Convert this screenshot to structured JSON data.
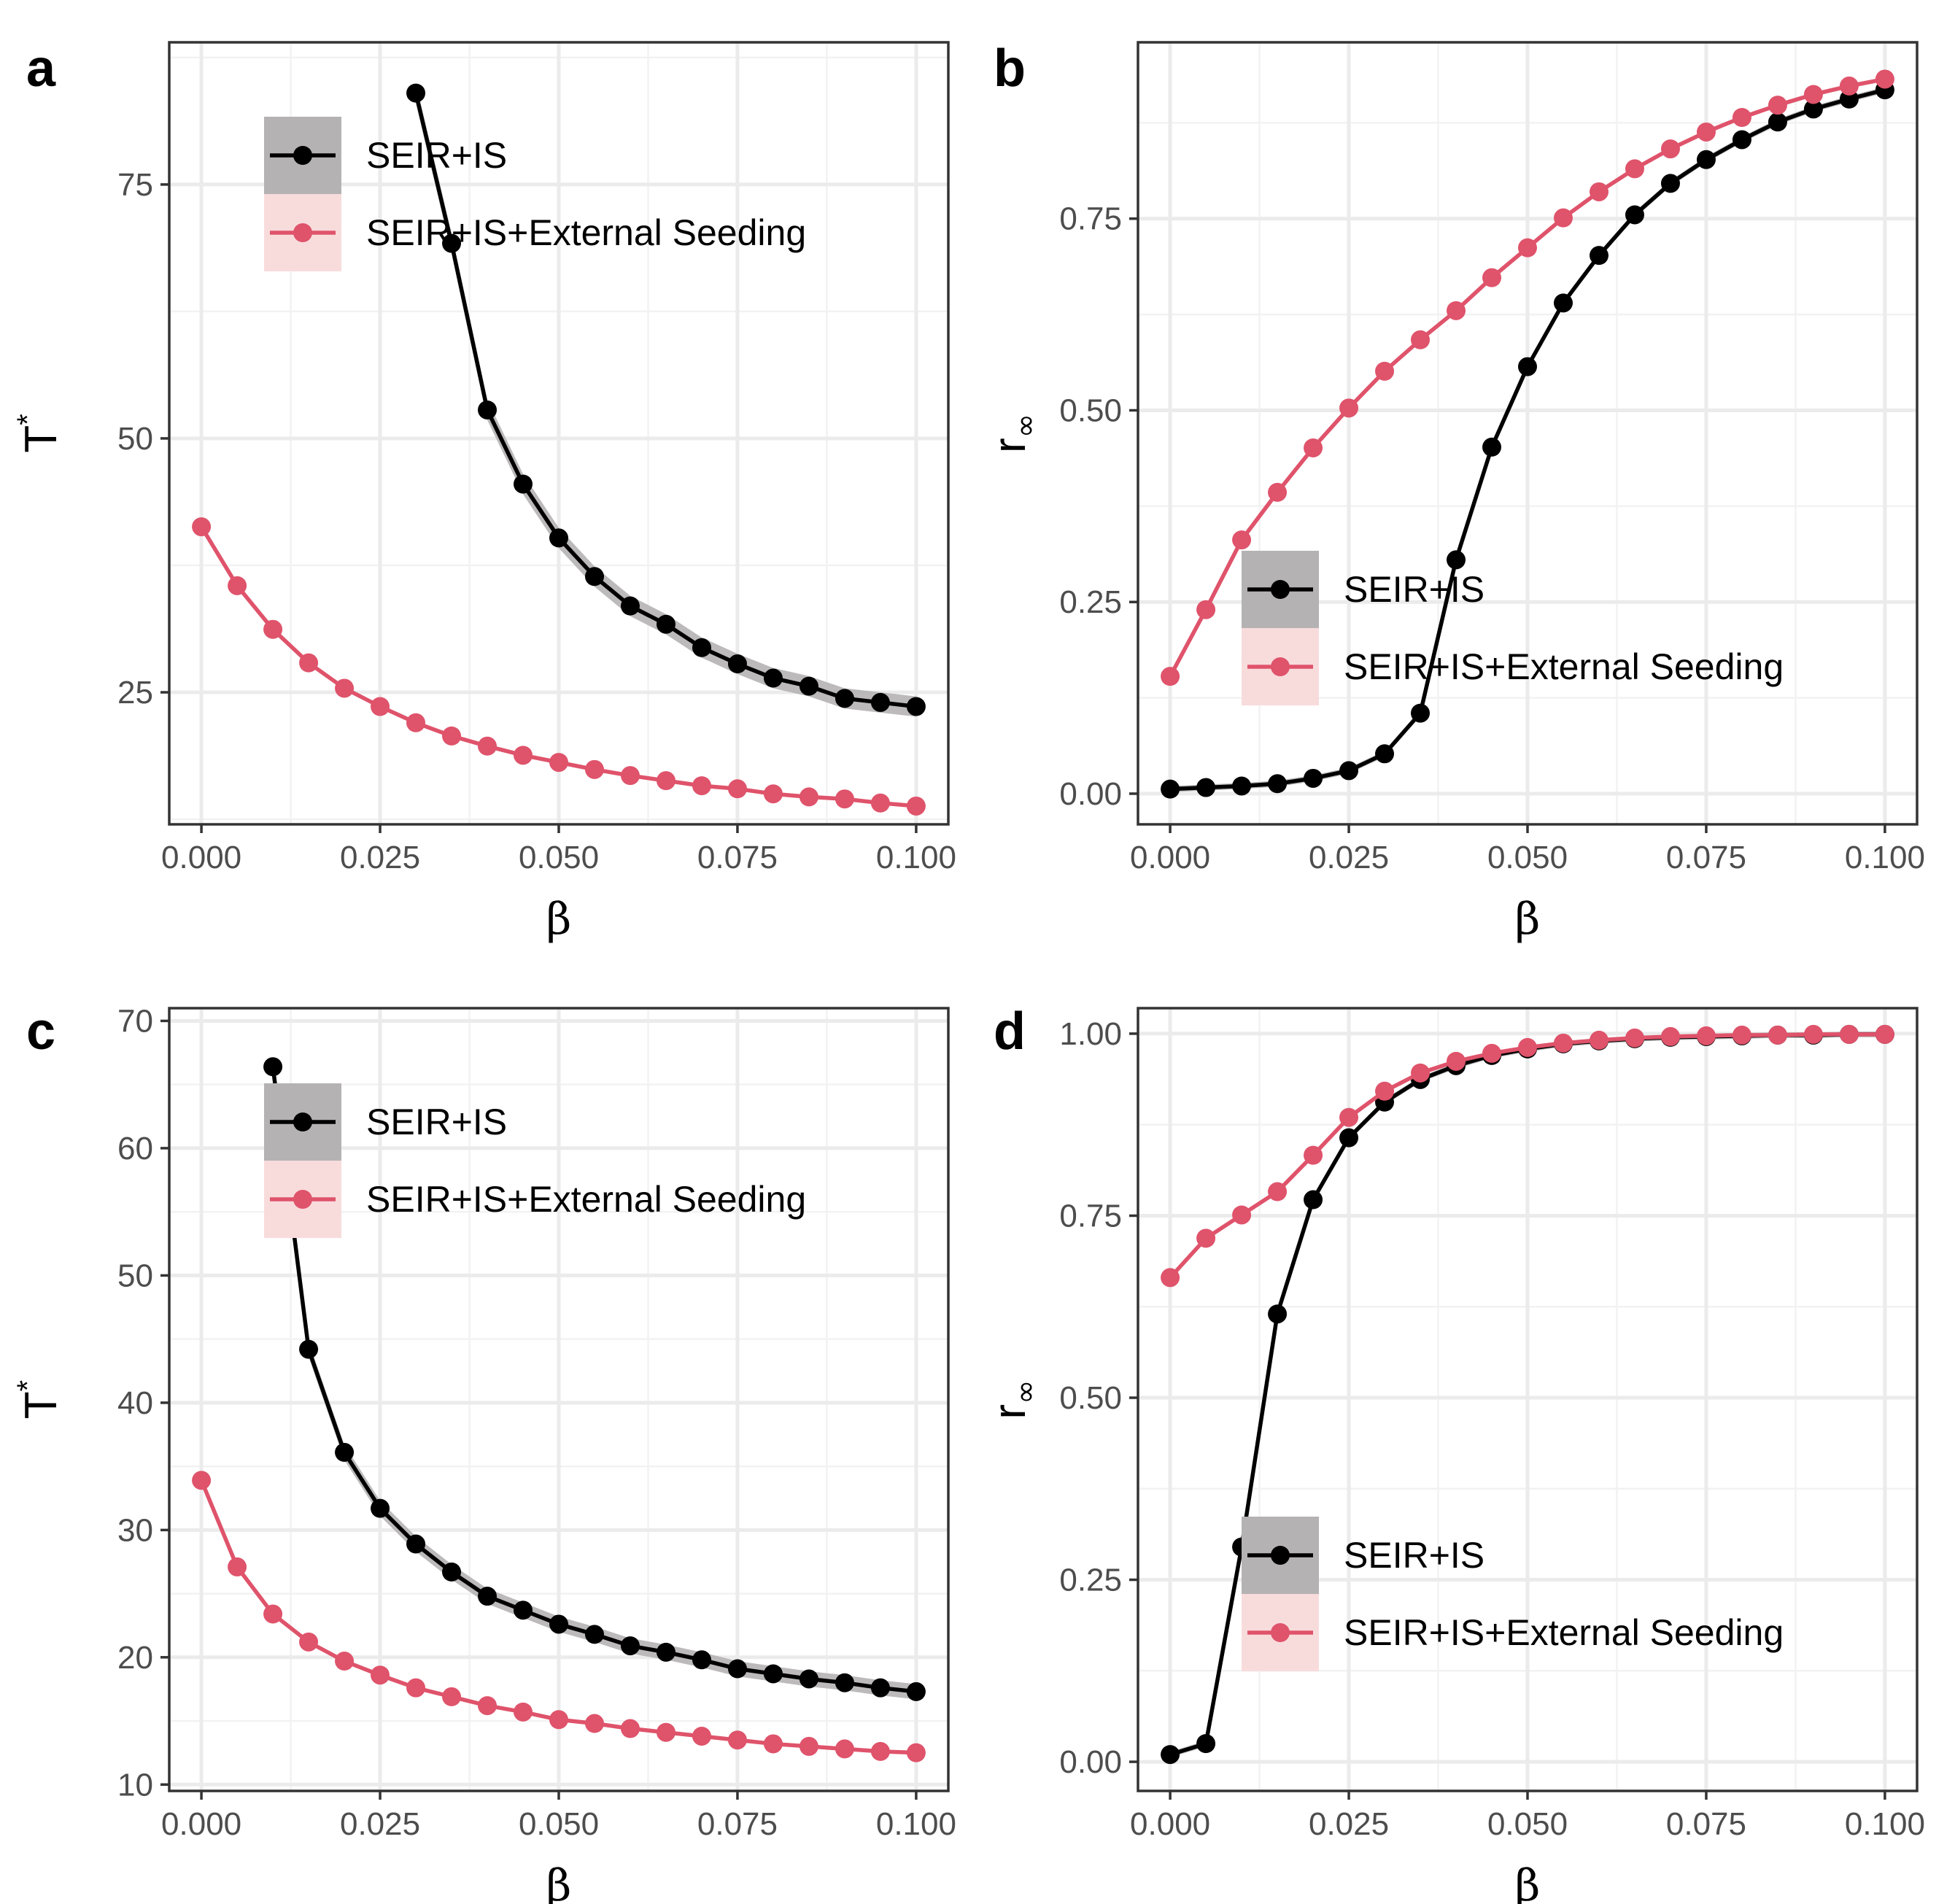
{
  "figure": {
    "legend_labels": [
      "SEIR+IS",
      "SEIR+IS+External Seeding"
    ],
    "series_colors": {
      "SEIR+IS": "#000000",
      "SEIR+IS+External Seeding": "#DF536B"
    },
    "band_colors": {
      "SEIR+IS": "#b5b2b3",
      "SEIR+IS+External Seeding": "#f8dcdc"
    }
  },
  "chart_data": [
    {
      "panel": "a",
      "type": "line",
      "xlabel": "β",
      "ylabel": "T",
      "ylabel_superscript": "*",
      "xlim": [
        -0.0045,
        0.1045
      ],
      "ylim": [
        12,
        89
      ],
      "xticks": [
        0,
        0.025,
        0.05,
        0.075,
        0.1
      ],
      "xtick_labels": [
        "0.000",
        "0.025",
        "0.050",
        "0.075",
        "0.100"
      ],
      "yticks": [
        25,
        50,
        75
      ],
      "ytick_labels": [
        "25",
        "50",
        "75"
      ],
      "legend_position": "top-left",
      "series": [
        {
          "name": "SEIR+IS",
          "x": [
            0.03,
            0.035,
            0.04,
            0.045,
            0.05,
            0.055,
            0.06,
            0.065,
            0.07,
            0.075,
            0.08,
            0.085,
            0.09,
            0.095,
            0.1
          ],
          "values": [
            84.0,
            69.2,
            52.8,
            45.5,
            40.2,
            36.4,
            33.5,
            31.7,
            29.4,
            27.8,
            26.4,
            25.6,
            24.4,
            24.0,
            23.6
          ],
          "band": 1.0
        },
        {
          "name": "SEIR+IS+External Seeding",
          "x": [
            0.0,
            0.005,
            0.01,
            0.015,
            0.02,
            0.025,
            0.03,
            0.035,
            0.04,
            0.045,
            0.05,
            0.055,
            0.06,
            0.065,
            0.07,
            0.075,
            0.08,
            0.085,
            0.09,
            0.095,
            0.1
          ],
          "values": [
            41.3,
            35.5,
            31.2,
            27.9,
            25.4,
            23.6,
            22.0,
            20.7,
            19.7,
            18.8,
            18.1,
            17.4,
            16.8,
            16.3,
            15.8,
            15.5,
            15.0,
            14.7,
            14.5,
            14.1,
            13.8
          ],
          "band": 0.2
        }
      ]
    },
    {
      "panel": "b",
      "type": "line",
      "xlabel": "β",
      "ylabel": "r",
      "ylabel_subscript": "∞",
      "xlim": [
        -0.0045,
        0.1045
      ],
      "ylim": [
        -0.04,
        0.98
      ],
      "xticks": [
        0,
        0.025,
        0.05,
        0.075,
        0.1
      ],
      "xtick_labels": [
        "0.000",
        "0.025",
        "0.050",
        "0.075",
        "0.100"
      ],
      "yticks": [
        0,
        0.25,
        0.5,
        0.75
      ],
      "ytick_labels": [
        "0.00",
        "0.25",
        "0.50",
        "0.75"
      ],
      "legend_position": "bottom-left",
      "series": [
        {
          "name": "SEIR+IS",
          "x": [
            0.0,
            0.005,
            0.01,
            0.015,
            0.02,
            0.025,
            0.03,
            0.035,
            0.04,
            0.045,
            0.05,
            0.055,
            0.06,
            0.065,
            0.07,
            0.075,
            0.08,
            0.085,
            0.09,
            0.095,
            0.1
          ],
          "values": [
            0.006,
            0.008,
            0.01,
            0.013,
            0.02,
            0.03,
            0.052,
            0.105,
            0.305,
            0.452,
            0.557,
            0.64,
            0.702,
            0.755,
            0.796,
            0.827,
            0.853,
            0.876,
            0.893,
            0.906,
            0.918
          ],
          "band": 0.004
        },
        {
          "name": "SEIR+IS+External Seeding",
          "x": [
            0.0,
            0.005,
            0.01,
            0.015,
            0.02,
            0.025,
            0.03,
            0.035,
            0.04,
            0.045,
            0.05,
            0.055,
            0.06,
            0.065,
            0.07,
            0.075,
            0.08,
            0.085,
            0.09,
            0.095,
            0.1
          ],
          "values": [
            0.153,
            0.24,
            0.331,
            0.393,
            0.451,
            0.503,
            0.551,
            0.592,
            0.63,
            0.673,
            0.712,
            0.751,
            0.785,
            0.815,
            0.841,
            0.863,
            0.882,
            0.898,
            0.912,
            0.923,
            0.932
          ],
          "band": 0.003
        }
      ]
    },
    {
      "panel": "c",
      "type": "line",
      "xlabel": "β",
      "ylabel": "T",
      "ylabel_superscript": "*",
      "xlim": [
        -0.0045,
        0.1045
      ],
      "ylim": [
        9.5,
        71
      ],
      "xticks": [
        0,
        0.025,
        0.05,
        0.075,
        0.1
      ],
      "xtick_labels": [
        "0.000",
        "0.025",
        "0.050",
        "0.075",
        "0.100"
      ],
      "yticks": [
        10,
        20,
        30,
        40,
        50,
        60,
        70
      ],
      "ytick_labels": [
        "10",
        "20",
        "30",
        "40",
        "50",
        "60",
        "70"
      ],
      "legend_position": "top-left",
      "series": [
        {
          "name": "SEIR+IS",
          "x": [
            0.01,
            0.015,
            0.02,
            0.025,
            0.03,
            0.035,
            0.04,
            0.045,
            0.05,
            0.055,
            0.06,
            0.065,
            0.07,
            0.075,
            0.08,
            0.085,
            0.09,
            0.095,
            0.1
          ],
          "values": [
            66.4,
            44.2,
            36.1,
            31.7,
            28.9,
            26.7,
            24.8,
            23.7,
            22.6,
            21.8,
            20.9,
            20.4,
            19.8,
            19.1,
            18.7,
            18.3,
            18.0,
            17.6,
            17.3
          ],
          "band": 0.6
        },
        {
          "name": "SEIR+IS+External Seeding",
          "x": [
            0.0,
            0.005,
            0.01,
            0.015,
            0.02,
            0.025,
            0.03,
            0.035,
            0.04,
            0.045,
            0.05,
            0.055,
            0.06,
            0.065,
            0.07,
            0.075,
            0.08,
            0.085,
            0.09,
            0.095,
            0.1
          ],
          "values": [
            33.9,
            27.1,
            23.4,
            21.2,
            19.7,
            18.6,
            17.6,
            16.9,
            16.2,
            15.7,
            15.1,
            14.8,
            14.4,
            14.1,
            13.8,
            13.5,
            13.2,
            13.0,
            12.8,
            12.6,
            12.5
          ],
          "band": 0.15
        }
      ]
    },
    {
      "panel": "d",
      "type": "line",
      "xlabel": "β",
      "ylabel": "r",
      "ylabel_subscript": "∞",
      "xlim": [
        -0.0045,
        0.1045
      ],
      "ylim": [
        -0.04,
        1.035
      ],
      "xticks": [
        0,
        0.025,
        0.05,
        0.075,
        0.1
      ],
      "xtick_labels": [
        "0.000",
        "0.025",
        "0.050",
        "0.075",
        "0.100"
      ],
      "yticks": [
        0,
        0.25,
        0.5,
        0.75,
        1.0
      ],
      "ytick_labels": [
        "0.00",
        "0.25",
        "0.50",
        "0.75",
        "1.00"
      ],
      "legend_position": "bottom-left",
      "series": [
        {
          "name": "SEIR+IS",
          "x": [
            0.0,
            0.005,
            0.01,
            0.015,
            0.02,
            0.025,
            0.03,
            0.035,
            0.04,
            0.045,
            0.05,
            0.055,
            0.06,
            0.065,
            0.07,
            0.075,
            0.08,
            0.085,
            0.09,
            0.095,
            0.1
          ],
          "values": [
            0.01,
            0.025,
            0.295,
            0.615,
            0.772,
            0.857,
            0.906,
            0.937,
            0.956,
            0.97,
            0.979,
            0.986,
            0.99,
            0.993,
            0.995,
            0.996,
            0.997,
            0.998,
            0.998,
            0.999,
            0.999
          ],
          "band": 0.004
        },
        {
          "name": "SEIR+IS+External Seeding",
          "x": [
            0.0,
            0.005,
            0.01,
            0.015,
            0.02,
            0.025,
            0.03,
            0.035,
            0.04,
            0.045,
            0.05,
            0.055,
            0.06,
            0.065,
            0.07,
            0.075,
            0.08,
            0.085,
            0.09,
            0.095,
            0.1
          ],
          "values": [
            0.665,
            0.719,
            0.751,
            0.783,
            0.833,
            0.885,
            0.921,
            0.946,
            0.962,
            0.973,
            0.981,
            0.987,
            0.991,
            0.994,
            0.996,
            0.997,
            0.998,
            0.998,
            0.999,
            0.999,
            0.999
          ],
          "band": 0.003
        }
      ]
    }
  ]
}
